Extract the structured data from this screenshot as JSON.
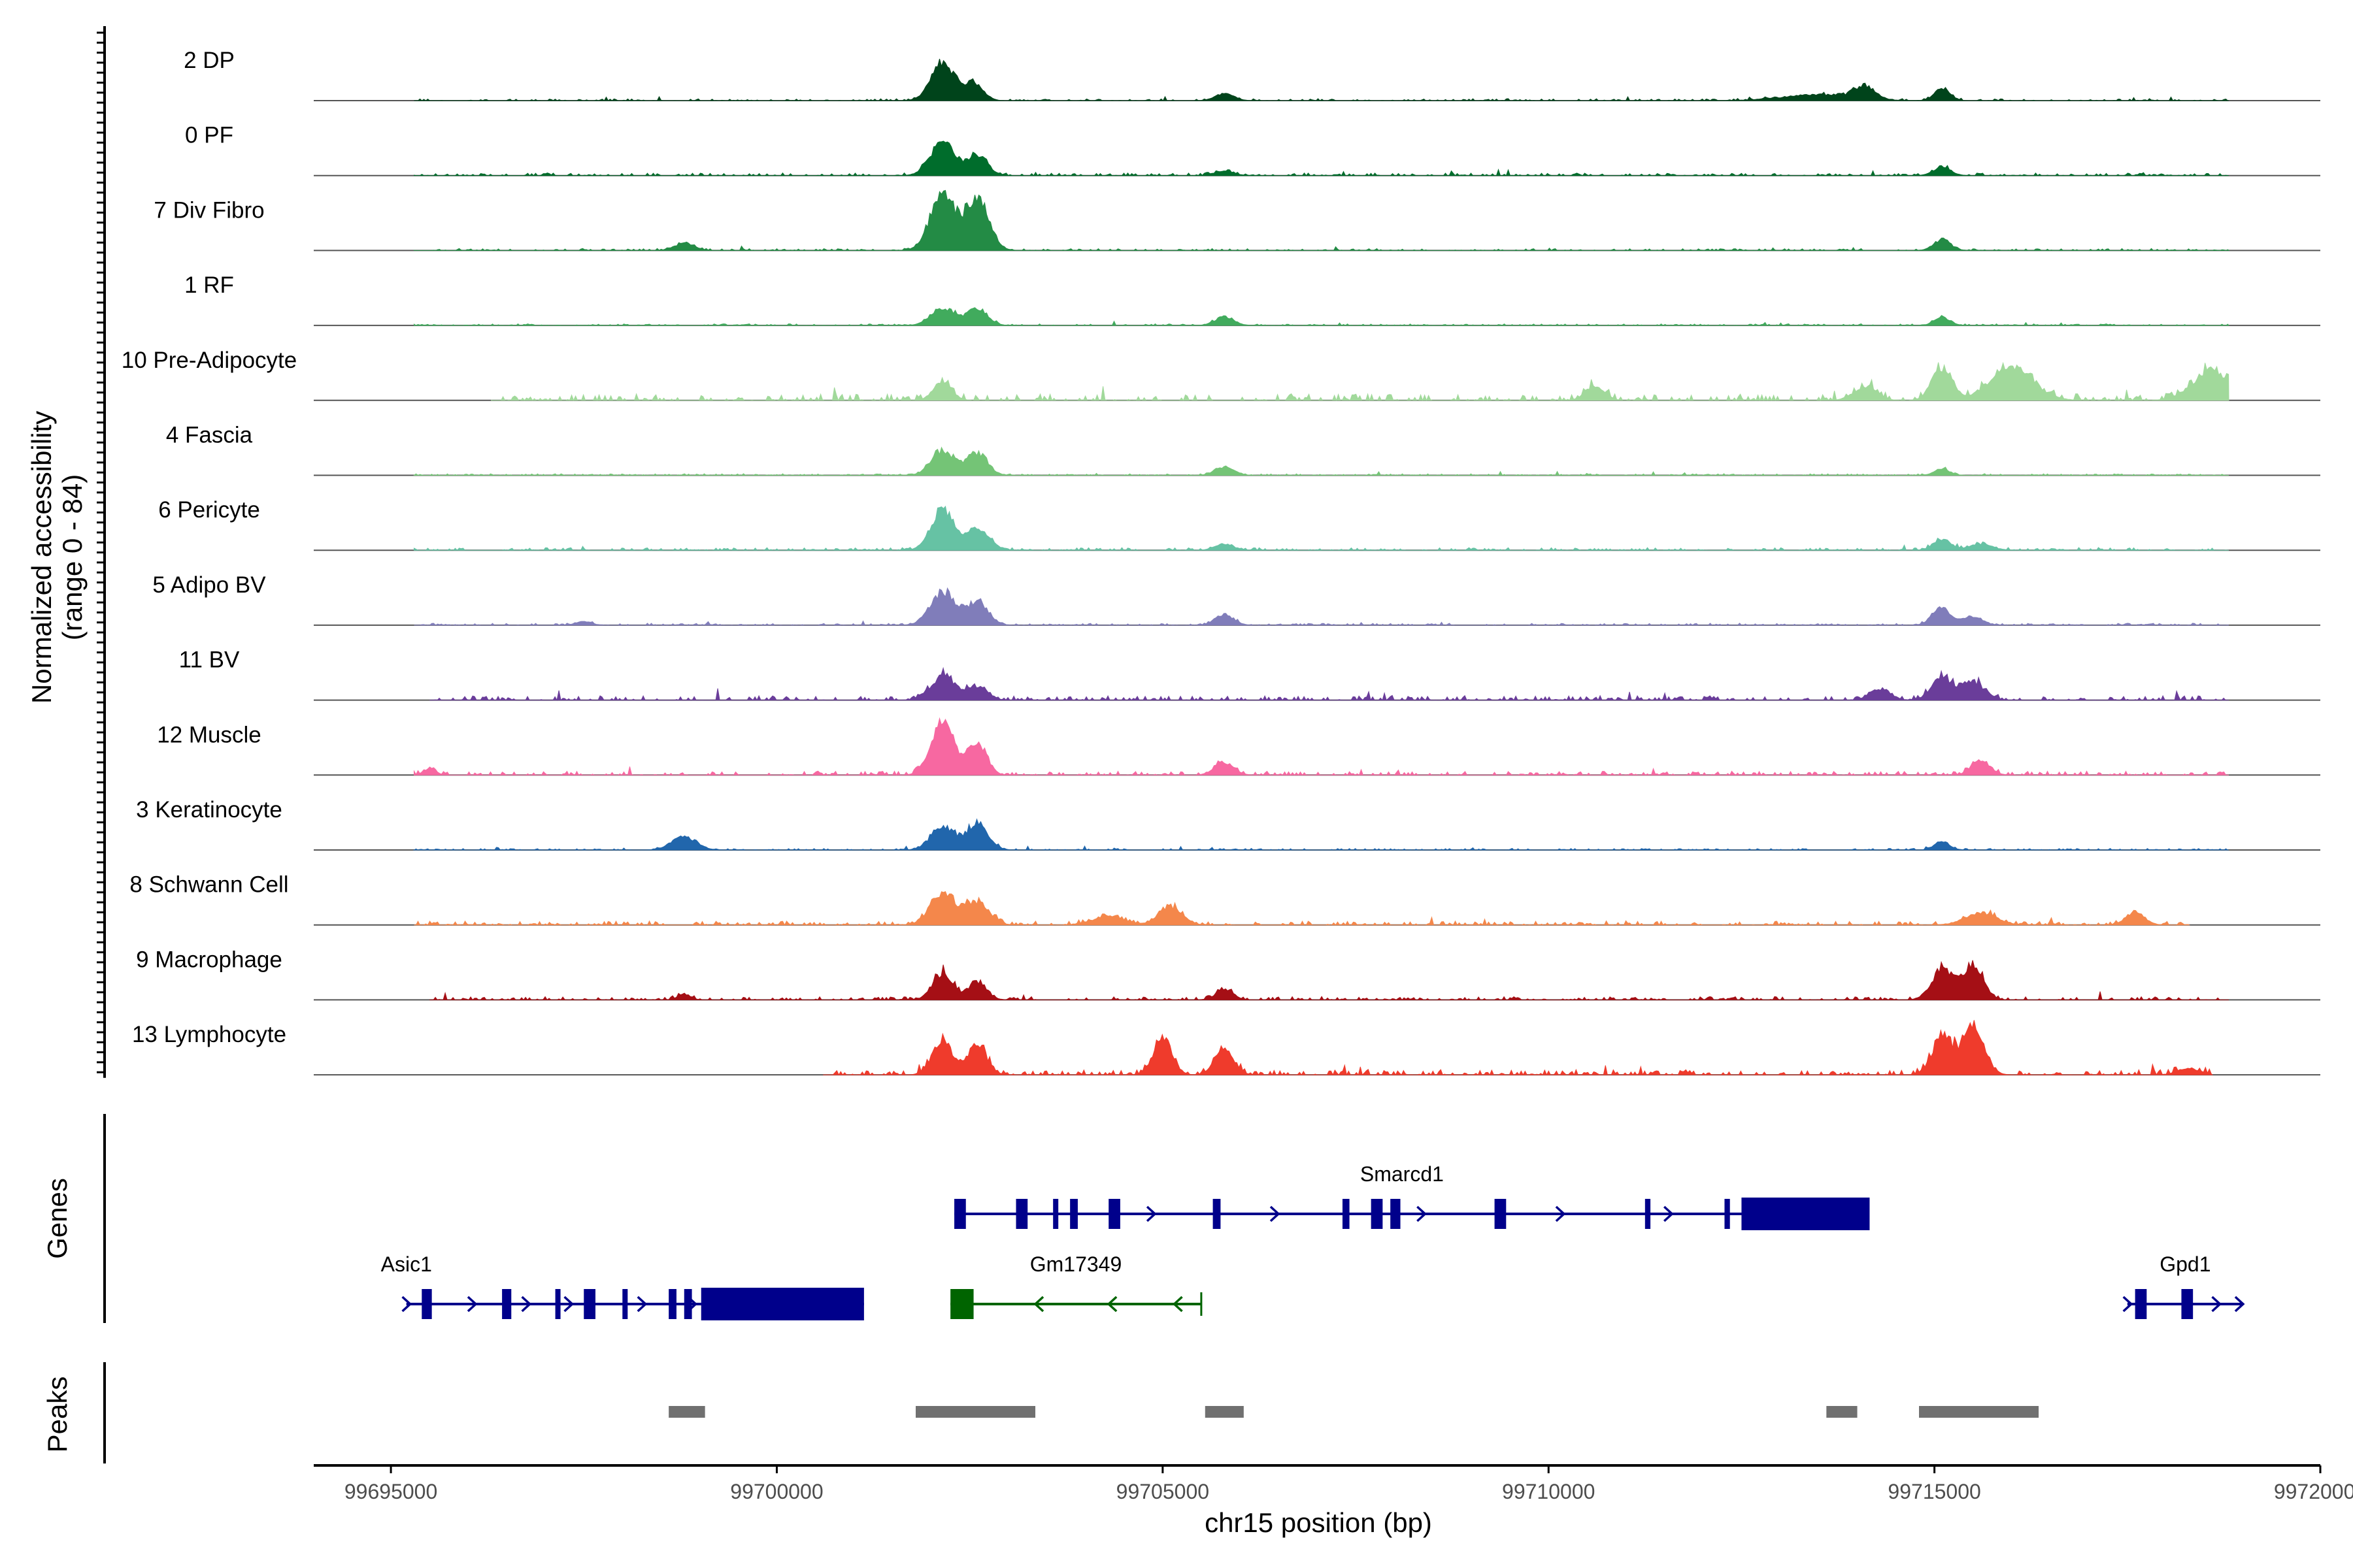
{
  "chart_data": {
    "type": "genome-coverage",
    "title": "",
    "xlabel": "chr15 position (bp)",
    "ylabel_line1": "Normalized accessibility",
    "ylabel_line2": "(range 0 - 84)",
    "y_range": [
      0,
      84
    ],
    "x_range": [
      99694000,
      99720000
    ],
    "x_ticks": [
      99695000,
      99700000,
      99705000,
      99710000,
      99715000,
      99720000
    ],
    "x_tick_labels": [
      "99695000",
      "99700000",
      "99705000",
      "99710000",
      "99715000",
      "99720000"
    ],
    "track_labels": {
      "genes": "Genes",
      "peaks": "Peaks"
    },
    "tracks": [
      {
        "name": "2 DP",
        "color": "#00441b",
        "peaks": [
          [
            99702150,
            0.62,
            150
          ],
          [
            99702550,
            0.3,
            120
          ],
          [
            99705800,
            0.12,
            120
          ],
          [
            99713500,
            0.1,
            450
          ],
          [
            99714100,
            0.22,
            130
          ],
          [
            99715100,
            0.2,
            100
          ]
        ],
        "noise": [
          99695300,
          99719000,
          0.03
        ]
      },
      {
        "name": "0 PF",
        "color": "#006d2c",
        "peaks": [
          [
            99702150,
            0.55,
            160
          ],
          [
            99702600,
            0.35,
            130
          ],
          [
            99705800,
            0.08,
            120
          ],
          [
            99715100,
            0.15,
            110
          ]
        ],
        "noise": [
          99695300,
          99719000,
          0.04
        ]
      },
      {
        "name": "7 Div Fibro",
        "color": "#238b45",
        "peaks": [
          [
            99702150,
            0.95,
            160
          ],
          [
            99702600,
            0.85,
            150
          ],
          [
            99698800,
            0.12,
            130
          ],
          [
            99715100,
            0.18,
            110
          ]
        ],
        "noise": [
          99695300,
          99719000,
          0.03
        ]
      },
      {
        "name": "1 RF",
        "color": "#41ab5d",
        "peaks": [
          [
            99702150,
            0.3,
            150
          ],
          [
            99702600,
            0.28,
            130
          ],
          [
            99705800,
            0.15,
            120
          ],
          [
            99715100,
            0.14,
            100
          ]
        ],
        "noise": [
          99695300,
          99719000,
          0.025
        ]
      },
      {
        "name": "10 Pre-Adipocyte",
        "color": "#a1d99b",
        "peaks": [
          [
            99702150,
            0.3,
            120
          ],
          [
            99710600,
            0.25,
            120
          ],
          [
            99714100,
            0.22,
            150
          ],
          [
            99715100,
            0.55,
            130
          ],
          [
            99716000,
            0.55,
            280
          ],
          [
            99718600,
            0.5,
            250
          ]
        ],
        "noise": [
          99696300,
          99719000,
          0.1
        ]
      },
      {
        "name": "4 Fascia",
        "color": "#74c476",
        "peaks": [
          [
            99702150,
            0.42,
            150
          ],
          [
            99702600,
            0.38,
            130
          ],
          [
            99705800,
            0.14,
            120
          ],
          [
            99715100,
            0.1,
            100
          ]
        ],
        "noise": [
          99695300,
          99719000,
          0.025
        ]
      },
      {
        "name": "6 Pericyte",
        "color": "#66c2a4",
        "peaks": [
          [
            99702150,
            0.65,
            150
          ],
          [
            99702600,
            0.35,
            150
          ],
          [
            99705800,
            0.1,
            120
          ],
          [
            99715100,
            0.18,
            110
          ],
          [
            99715600,
            0.1,
            150
          ]
        ],
        "noise": [
          99695300,
          99719000,
          0.04
        ]
      },
      {
        "name": "5 Adipo BV",
        "color": "#807dba",
        "peaks": [
          [
            99702150,
            0.55,
            160
          ],
          [
            99702600,
            0.38,
            140
          ],
          [
            99705800,
            0.18,
            120
          ],
          [
            99715100,
            0.28,
            120
          ],
          [
            99715500,
            0.15,
            120
          ],
          [
            99697500,
            0.06,
            100
          ]
        ],
        "noise": [
          99695300,
          99719000,
          0.03
        ]
      },
      {
        "name": "11 BV",
        "color": "#6a3d9a",
        "peaks": [
          [
            99702150,
            0.38,
            160
          ],
          [
            99702600,
            0.22,
            130
          ],
          [
            99715100,
            0.36,
            140
          ],
          [
            99715500,
            0.3,
            150
          ],
          [
            99714300,
            0.18,
            130
          ]
        ],
        "noise": [
          99695500,
          99719000,
          0.07
        ]
      },
      {
        "name": "12 Muscle",
        "color": "#f768a1",
        "peaks": [
          [
            99702150,
            0.92,
            150
          ],
          [
            99702600,
            0.55,
            120
          ],
          [
            99705800,
            0.22,
            120
          ],
          [
            99715600,
            0.25,
            120
          ],
          [
            99695500,
            0.1,
            80
          ]
        ],
        "noise": [
          99695300,
          99719000,
          0.06
        ]
      },
      {
        "name": "3 Keratinocyte",
        "color": "#2166ac",
        "peaks": [
          [
            99698800,
            0.22,
            160
          ],
          [
            99702150,
            0.4,
            150
          ],
          [
            99702600,
            0.45,
            140
          ],
          [
            99715100,
            0.14,
            100
          ]
        ],
        "noise": [
          99695300,
          99719000,
          0.025
        ]
      },
      {
        "name": "8 Schwann Cell",
        "color": "#f4874b",
        "peaks": [
          [
            99702150,
            0.55,
            160
          ],
          [
            99702600,
            0.38,
            150
          ],
          [
            99704300,
            0.15,
            200
          ],
          [
            99705100,
            0.3,
            150
          ],
          [
            99715600,
            0.2,
            200
          ],
          [
            99717600,
            0.22,
            120
          ]
        ],
        "noise": [
          99695300,
          99718300,
          0.06
        ]
      },
      {
        "name": "9 Macrophage",
        "color": "#a50f15",
        "peaks": [
          [
            99702150,
            0.45,
            130
          ],
          [
            99702600,
            0.3,
            120
          ],
          [
            99705800,
            0.18,
            110
          ],
          [
            99715100,
            0.5,
            140
          ],
          [
            99715500,
            0.58,
            130
          ],
          [
            99698800,
            0.1,
            80
          ]
        ],
        "noise": [
          99695500,
          99719000,
          0.05
        ]
      },
      {
        "name": "13 Lymphocyte",
        "color": "#ef3b2c",
        "peaks": [
          [
            99702150,
            0.55,
            130
          ],
          [
            99702600,
            0.5,
            120
          ],
          [
            99705000,
            0.6,
            120
          ],
          [
            99705800,
            0.45,
            120
          ],
          [
            99715100,
            0.65,
            130
          ],
          [
            99715500,
            0.8,
            140
          ],
          [
            99718300,
            0.1,
            150
          ]
        ],
        "noise": [
          99700600,
          99718600,
          0.08
        ]
      }
    ],
    "genes": [
      {
        "name": "Smarcd1",
        "strand": "+",
        "color": "#00008b",
        "row": 0,
        "start": 99702300,
        "end": 99713900,
        "exons": [
          [
            99702300,
            99702450
          ],
          [
            99703100,
            99703250
          ],
          [
            99703580,
            99703620
          ],
          [
            99703800,
            99703900
          ],
          [
            99704300,
            99704450
          ],
          [
            99705650,
            99705750
          ],
          [
            99707330,
            99707420
          ],
          [
            99707700,
            99707850
          ],
          [
            99707950,
            99708080
          ],
          [
            99709300,
            99709450
          ],
          [
            99711250,
            99711320
          ],
          [
            99712280,
            99712350
          ],
          [
            99712500,
            99714160
          ]
        ],
        "arrows": [
          99704900,
          99706500,
          99708400,
          99710200,
          99711600
        ]
      },
      {
        "name": "Asic1",
        "strand": "+",
        "color": "#00008b",
        "row": 1,
        "start": 99695200,
        "end": 99701130,
        "exons": [
          [
            99695400,
            99695530
          ],
          [
            99696440,
            99696560
          ],
          [
            99697130,
            99697170
          ],
          [
            99697500,
            99697650
          ],
          [
            99698000,
            99698050
          ],
          [
            99698600,
            99698700
          ],
          [
            99698800,
            99698900
          ],
          [
            99699020,
            99701130
          ]
        ],
        "arrows": [
          99695250,
          99696100,
          99696800,
          99697350,
          99698300,
          99698950
        ]
      },
      {
        "name": "Gm17349",
        "strand": "-",
        "color": "#006400",
        "row": 1,
        "start": 99702250,
        "end": 99705500,
        "exons": [
          [
            99702250,
            99702550
          ]
        ],
        "arrows": [
          99703350,
          99704300,
          99705150
        ]
      },
      {
        "name": "Gpd1",
        "strand": "+",
        "color": "#00008b",
        "row": 1,
        "start": 99717500,
        "end": 99719000,
        "exons": [
          [
            99717600,
            99717750
          ],
          [
            99718200,
            99718350
          ]
        ],
        "arrows": [
          99717550,
          99718700,
          99719000
        ]
      }
    ],
    "peak_regions": [
      [
        99698600,
        99699070
      ],
      [
        99701800,
        99703350
      ],
      [
        99705550,
        99706050
      ],
      [
        99713600,
        99714000
      ],
      [
        99714800,
        99716350
      ]
    ]
  }
}
